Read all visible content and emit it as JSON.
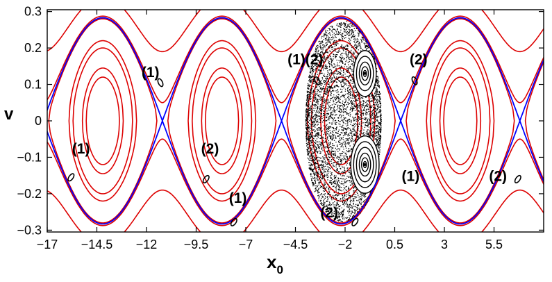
{
  "chart_data": {
    "type": "scatter",
    "title": "",
    "xlabel": "x",
    "xlabel_sub": "0",
    "ylabel": "v",
    "xlim": [
      -17,
      8
    ],
    "ylim": [
      -0.305,
      0.305
    ],
    "xticks": [
      -17,
      -14.5,
      -12,
      -9.5,
      -7,
      -4.5,
      -2,
      0.5,
      3,
      5.5
    ],
    "xtick_labels": [
      "−17",
      "−14.5",
      "−12",
      "−9.5",
      "−7",
      "−4.5",
      "−2",
      "0.5",
      "3",
      "5.5"
    ],
    "yticks": [
      -0.3,
      -0.2,
      -0.1,
      0,
      0.1,
      0.2,
      0.3
    ],
    "ytick_labels": [
      "−0.3",
      "−0.2",
      "−0.1",
      "0",
      "0.1",
      "0.2",
      "0.3"
    ],
    "grid": false,
    "period": 6.0,
    "separatrix": {
      "color": "#0000ff",
      "vmax": 0.283,
      "centers": [
        -14.2,
        -8.2,
        -2.2,
        3.8,
        9.8
      ]
    },
    "red_orbits": {
      "color": "#dd0000",
      "closed_levels": [
        0.12,
        0.22,
        0.28,
        0.2,
        0.145
      ],
      "open_levels": [
        0.05,
        0.19,
        0.36
      ]
    },
    "chaotic_region": {
      "color": "#000000",
      "x_range": [
        -4.0,
        -0.2
      ],
      "v_range": [
        -0.275,
        0.275
      ],
      "islands": [
        {
          "x": -1.0,
          "v": 0.13,
          "levels": [
            0.008,
            0.018,
            0.03,
            0.045,
            0.06
          ]
        },
        {
          "x": -1.0,
          "v": -0.12,
          "levels": [
            0.008,
            0.018,
            0.03,
            0.045,
            0.06,
            0.075
          ]
        }
      ]
    },
    "resonance_islands": [
      {
        "x": -11.3,
        "v": 0.105
      },
      {
        "x": -15.8,
        "v": -0.155
      },
      {
        "x": -9.0,
        "v": -0.16
      },
      {
        "x": -7.6,
        "v": -0.278
      },
      {
        "x": -3.4,
        "v": 0.11
      },
      {
        "x": -1.5,
        "v": -0.278
      },
      {
        "x": 1.5,
        "v": 0.11
      },
      {
        "x": 6.7,
        "v": -0.16
      }
    ],
    "annotations": [
      {
        "text": "(1)",
        "x": -11.8,
        "v": 0.12
      },
      {
        "text": "(1)",
        "x": -15.3,
        "v": -0.09
      },
      {
        "text": "(2)",
        "x": -8.8,
        "v": -0.09
      },
      {
        "text": "(1)",
        "x": -7.4,
        "v": -0.225
      },
      {
        "text": "(1)(2)",
        "x": -4.0,
        "v": 0.155
      },
      {
        "text": "(2)",
        "x": -2.8,
        "v": -0.265
      },
      {
        "text": "(2)",
        "x": 1.7,
        "v": 0.155
      },
      {
        "text": "(1)",
        "x": 1.3,
        "v": -0.165
      },
      {
        "text": "(2)",
        "x": 5.7,
        "v": -0.165
      }
    ]
  }
}
